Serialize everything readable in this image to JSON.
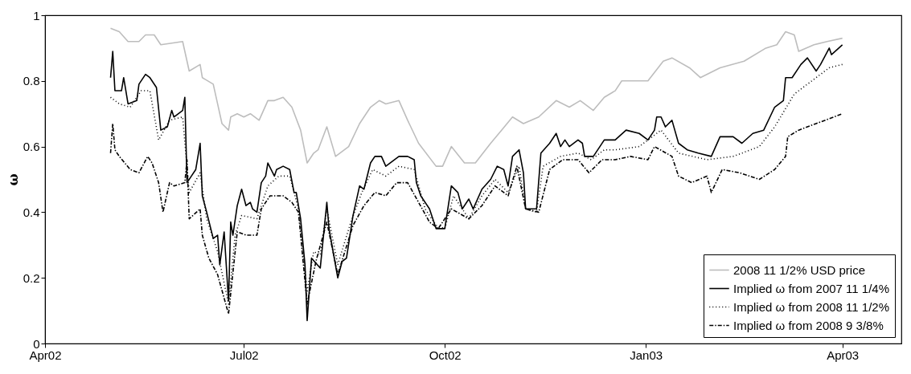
{
  "chart_data": {
    "type": "line",
    "ylabel": "ω",
    "xlim": [
      "2002-04-01",
      "2003-04-28"
    ],
    "ylim": [
      0,
      1
    ],
    "xticks": [
      {
        "value": "2002-04-01",
        "label": "Apr02"
      },
      {
        "value": "2002-07-01",
        "label": "Jul02"
      },
      {
        "value": "2002-10-01",
        "label": "Oct02"
      },
      {
        "value": "2003-01-01",
        "label": "Jan03"
      },
      {
        "value": "2003-04-01",
        "label": "Apr03"
      }
    ],
    "yticks": [
      0,
      0.2,
      0.4,
      0.6,
      0.8,
      1
    ],
    "grid": false,
    "legend": "bottom right",
    "series": [
      {
        "name": "2008 11 1/2% USD price",
        "color": "#bdbdbd",
        "line_style": "solid",
        "x": [
          "2002-05-01",
          "2002-05-05",
          "2002-05-09",
          "2002-05-14",
          "2002-05-17",
          "2002-05-21",
          "2002-05-24",
          "2002-06-03",
          "2002-06-06",
          "2002-06-11",
          "2002-06-12",
          "2002-06-17",
          "2002-06-19",
          "2002-06-21",
          "2002-06-24",
          "2002-06-25",
          "2002-06-28",
          "2002-07-01",
          "2002-07-04",
          "2002-07-08",
          "2002-07-12",
          "2002-07-15",
          "2002-07-19",
          "2002-07-23",
          "2002-07-27",
          "2002-07-30",
          "2002-08-02",
          "2002-08-04",
          "2002-08-08",
          "2002-08-12",
          "2002-08-18",
          "2002-08-23",
          "2002-08-28",
          "2002-09-01",
          "2002-09-04",
          "2002-09-10",
          "2002-09-14",
          "2002-09-19",
          "2002-09-27",
          "2002-09-30",
          "2002-10-04",
          "2002-10-10",
          "2002-10-15",
          "2002-10-22",
          "2002-10-27",
          "2002-11-01",
          "2002-11-06",
          "2002-11-13",
          "2002-11-21",
          "2002-11-27",
          "2002-12-02",
          "2002-12-08",
          "2002-12-13",
          "2002-12-18",
          "2002-12-21",
          "2003-01-02",
          "2003-01-09",
          "2003-01-13",
          "2003-01-21",
          "2003-01-26",
          "2003-02-04",
          "2003-02-15",
          "2003-02-25",
          "2003-03-02",
          "2003-03-06",
          "2003-03-10",
          "2003-03-12",
          "2003-03-19",
          "2003-03-25",
          "2003-04-01"
        ],
        "values": [
          0.96,
          0.95,
          0.92,
          0.92,
          0.94,
          0.94,
          0.91,
          0.92,
          0.83,
          0.85,
          0.81,
          0.79,
          0.73,
          0.67,
          0.65,
          0.69,
          0.7,
          0.69,
          0.7,
          0.68,
          0.74,
          0.74,
          0.75,
          0.72,
          0.65,
          0.55,
          0.58,
          0.59,
          0.66,
          0.57,
          0.6,
          0.67,
          0.72,
          0.74,
          0.73,
          0.74,
          0.68,
          0.61,
          0.54,
          0.54,
          0.6,
          0.55,
          0.55,
          0.61,
          0.65,
          0.69,
          0.67,
          0.69,
          0.74,
          0.72,
          0.74,
          0.71,
          0.75,
          0.77,
          0.8,
          0.8,
          0.86,
          0.87,
          0.84,
          0.81,
          0.84,
          0.86,
          0.9,
          0.91,
          0.95,
          0.94,
          0.89,
          0.91,
          0.92,
          0.93
        ]
      },
      {
        "name": "Implied ω from 2007 11 1/4%",
        "color": "#000000",
        "line_style": "solid",
        "x": [
          "2002-05-01",
          "2002-05-02",
          "2002-05-03",
          "2002-05-06",
          "2002-05-07",
          "2002-05-09",
          "2002-05-13",
          "2002-05-14",
          "2002-05-17",
          "2002-05-19",
          "2002-05-22",
          "2002-05-24",
          "2002-05-27",
          "2002-05-29",
          "2002-05-30",
          "2002-06-03",
          "2002-06-04",
          "2002-06-05",
          "2002-06-07",
          "2002-06-09",
          "2002-06-11",
          "2002-06-12",
          "2002-06-14",
          "2002-06-17",
          "2002-06-19",
          "2002-06-20",
          "2002-06-22",
          "2002-06-24",
          "2002-06-25",
          "2002-06-26",
          "2002-06-28",
          "2002-06-30",
          "2002-07-02",
          "2002-07-04",
          "2002-07-05",
          "2002-07-07",
          "2002-07-09",
          "2002-07-11",
          "2002-07-12",
          "2002-07-15",
          "2002-07-16",
          "2002-07-19",
          "2002-07-22",
          "2002-07-24",
          "2002-07-25",
          "2002-07-27",
          "2002-07-29",
          "2002-07-30",
          "2002-08-01",
          "2002-08-05",
          "2002-08-08",
          "2002-08-09",
          "2002-08-13",
          "2002-08-15",
          "2002-08-17",
          "2002-08-20",
          "2002-08-23",
          "2002-08-25",
          "2002-08-28",
          "2002-08-30",
          "2002-09-02",
          "2002-09-04",
          "2002-09-10",
          "2002-09-14",
          "2002-09-17",
          "2002-09-18",
          "2002-09-20",
          "2002-09-24",
          "2002-09-27",
          "2002-10-01",
          "2002-10-04",
          "2002-10-07",
          "2002-10-09",
          "2002-10-12",
          "2002-10-14",
          "2002-10-18",
          "2002-10-22",
          "2002-10-25",
          "2002-10-28",
          "2002-10-30",
          "2002-11-01",
          "2002-11-04",
          "2002-11-06",
          "2002-11-07",
          "2002-11-12",
          "2002-11-14",
          "2002-11-18",
          "2002-11-21",
          "2002-11-23",
          "2002-11-25",
          "2002-11-27",
          "2002-12-01",
          "2002-12-03",
          "2002-12-04",
          "2002-12-08",
          "2002-12-11",
          "2002-12-13",
          "2002-12-18",
          "2002-12-23",
          "2002-12-29",
          "2003-01-02",
          "2003-01-05",
          "2003-01-06",
          "2003-01-08",
          "2003-01-10",
          "2003-01-13",
          "2003-01-16",
          "2003-01-20",
          "2003-01-25",
          "2003-01-31",
          "2003-02-04",
          "2003-02-10",
          "2003-02-14",
          "2003-02-19",
          "2003-02-24",
          "2003-03-01",
          "2003-03-05",
          "2003-03-06",
          "2003-03-09",
          "2003-03-13",
          "2003-03-16",
          "2003-03-20",
          "2003-03-22",
          "2003-03-26",
          "2003-03-27",
          "2003-04-01"
        ],
        "values": [
          0.81,
          0.89,
          0.77,
          0.77,
          0.81,
          0.73,
          0.74,
          0.79,
          0.82,
          0.81,
          0.78,
          0.65,
          0.66,
          0.71,
          0.69,
          0.71,
          0.75,
          0.49,
          0.51,
          0.53,
          0.61,
          0.45,
          0.4,
          0.32,
          0.33,
          0.24,
          0.34,
          0.13,
          0.37,
          0.33,
          0.42,
          0.47,
          0.42,
          0.43,
          0.41,
          0.4,
          0.49,
          0.51,
          0.55,
          0.51,
          0.53,
          0.54,
          0.53,
          0.46,
          0.46,
          0.38,
          0.24,
          0.07,
          0.26,
          0.23,
          0.43,
          0.35,
          0.2,
          0.25,
          0.26,
          0.39,
          0.48,
          0.47,
          0.55,
          0.57,
          0.57,
          0.54,
          0.57,
          0.57,
          0.56,
          0.49,
          0.45,
          0.41,
          0.35,
          0.35,
          0.48,
          0.46,
          0.41,
          0.44,
          0.41,
          0.47,
          0.5,
          0.54,
          0.53,
          0.48,
          0.57,
          0.59,
          0.52,
          0.41,
          0.41,
          0.58,
          0.61,
          0.64,
          0.6,
          0.62,
          0.6,
          0.62,
          0.61,
          0.57,
          0.57,
          0.6,
          0.62,
          0.62,
          0.65,
          0.64,
          0.62,
          0.65,
          0.69,
          0.69,
          0.66,
          0.68,
          0.61,
          0.59,
          0.58,
          0.57,
          0.63,
          0.63,
          0.61,
          0.64,
          0.65,
          0.72,
          0.74,
          0.81,
          0.81,
          0.85,
          0.87,
          0.83,
          0.85,
          0.9,
          0.88,
          0.91
        ]
      },
      {
        "name": "Implied ω from 2008 11 1/2%",
        "color": "#000000",
        "line_style": "dotted",
        "x": [
          "2002-05-01",
          "2002-05-05",
          "2002-05-10",
          "2002-05-15",
          "2002-05-19",
          "2002-05-23",
          "2002-05-28",
          "2002-06-03",
          "2002-06-06",
          "2002-06-11",
          "2002-06-14",
          "2002-06-19",
          "2002-06-24",
          "2002-06-27",
          "2002-06-30",
          "2002-07-07",
          "2002-07-12",
          "2002-07-17",
          "2002-07-22",
          "2002-07-26",
          "2002-07-30",
          "2002-08-02",
          "2002-08-05",
          "2002-08-08",
          "2002-08-13",
          "2002-08-19",
          "2002-08-24",
          "2002-08-29",
          "2002-09-04",
          "2002-09-10",
          "2002-09-17",
          "2002-09-22",
          "2002-09-27",
          "2002-10-01",
          "2002-10-05",
          "2002-10-12",
          "2002-10-18",
          "2002-10-24",
          "2002-10-30",
          "2002-11-04",
          "2002-11-07",
          "2002-11-12",
          "2002-11-15",
          "2002-11-23",
          "2002-12-01",
          "2002-12-07",
          "2002-12-13",
          "2002-12-18",
          "2002-12-29",
          "2003-01-08",
          "2003-01-16",
          "2003-01-29",
          "2003-02-10",
          "2003-02-22",
          "2003-03-01",
          "2003-03-10",
          "2003-03-20",
          "2003-03-26",
          "2003-04-01"
        ],
        "values": [
          0.75,
          0.73,
          0.72,
          0.77,
          0.77,
          0.62,
          0.68,
          0.69,
          0.46,
          0.52,
          0.38,
          0.28,
          0.12,
          0.33,
          0.39,
          0.38,
          0.48,
          0.51,
          0.51,
          0.41,
          0.16,
          0.28,
          0.27,
          0.41,
          0.24,
          0.37,
          0.46,
          0.53,
          0.51,
          0.54,
          0.53,
          0.41,
          0.36,
          0.35,
          0.45,
          0.38,
          0.45,
          0.5,
          0.46,
          0.54,
          0.41,
          0.4,
          0.54,
          0.57,
          0.58,
          0.56,
          0.59,
          0.59,
          0.6,
          0.65,
          0.58,
          0.56,
          0.57,
          0.6,
          0.66,
          0.76,
          0.81,
          0.84,
          0.85
        ]
      },
      {
        "name": "Implied ω from 2008 9 3/8%",
        "color": "#000000",
        "line_style": "dashed",
        "x": [
          "2002-05-01",
          "2002-05-02",
          "2002-05-03",
          "2002-05-05",
          "2002-05-10",
          "2002-05-14",
          "2002-05-18",
          "2002-05-20",
          "2002-05-23",
          "2002-05-25",
          "2002-05-28",
          "2002-05-30",
          "2002-06-04",
          "2002-06-05",
          "2002-06-06",
          "2002-06-11",
          "2002-06-12",
          "2002-06-15",
          "2002-06-19",
          "2002-06-24",
          "2002-06-28",
          "2002-07-02",
          "2002-07-07",
          "2002-07-09",
          "2002-07-13",
          "2002-07-19",
          "2002-07-23",
          "2002-07-26",
          "2002-07-30",
          "2002-08-03",
          "2002-08-08",
          "2002-08-13",
          "2002-08-20",
          "2002-08-25",
          "2002-08-30",
          "2002-09-04",
          "2002-09-09",
          "2002-09-14",
          "2002-09-19",
          "2002-09-24",
          "2002-09-28",
          "2002-10-04",
          "2002-10-12",
          "2002-10-18",
          "2002-10-24",
          "2002-10-30",
          "2002-11-03",
          "2002-11-07",
          "2002-11-13",
          "2002-11-18",
          "2002-11-24",
          "2002-12-01",
          "2002-12-06",
          "2002-12-12",
          "2002-12-18",
          "2002-12-25",
          "2003-01-02",
          "2003-01-05",
          "2003-01-13",
          "2003-01-16",
          "2003-01-22",
          "2003-01-29",
          "2003-01-31",
          "2003-02-05",
          "2003-02-13",
          "2003-02-22",
          "2003-03-01",
          "2003-03-06",
          "2003-03-07",
          "2003-03-12",
          "2003-03-20",
          "2003-04-01"
        ],
        "values": [
          0.58,
          0.67,
          0.59,
          0.57,
          0.53,
          0.52,
          0.57,
          0.55,
          0.49,
          0.4,
          0.49,
          0.48,
          0.49,
          0.56,
          0.38,
          0.41,
          0.33,
          0.26,
          0.21,
          0.09,
          0.34,
          0.33,
          0.33,
          0.41,
          0.45,
          0.45,
          0.43,
          0.4,
          0.12,
          0.25,
          0.37,
          0.21,
          0.36,
          0.42,
          0.46,
          0.45,
          0.49,
          0.49,
          0.43,
          0.37,
          0.35,
          0.41,
          0.38,
          0.42,
          0.48,
          0.45,
          0.54,
          0.41,
          0.4,
          0.53,
          0.56,
          0.56,
          0.52,
          0.56,
          0.56,
          0.57,
          0.56,
          0.6,
          0.57,
          0.51,
          0.49,
          0.51,
          0.46,
          0.53,
          0.52,
          0.5,
          0.53,
          0.57,
          0.63,
          0.65,
          0.67,
          0.7
        ]
      }
    ]
  }
}
